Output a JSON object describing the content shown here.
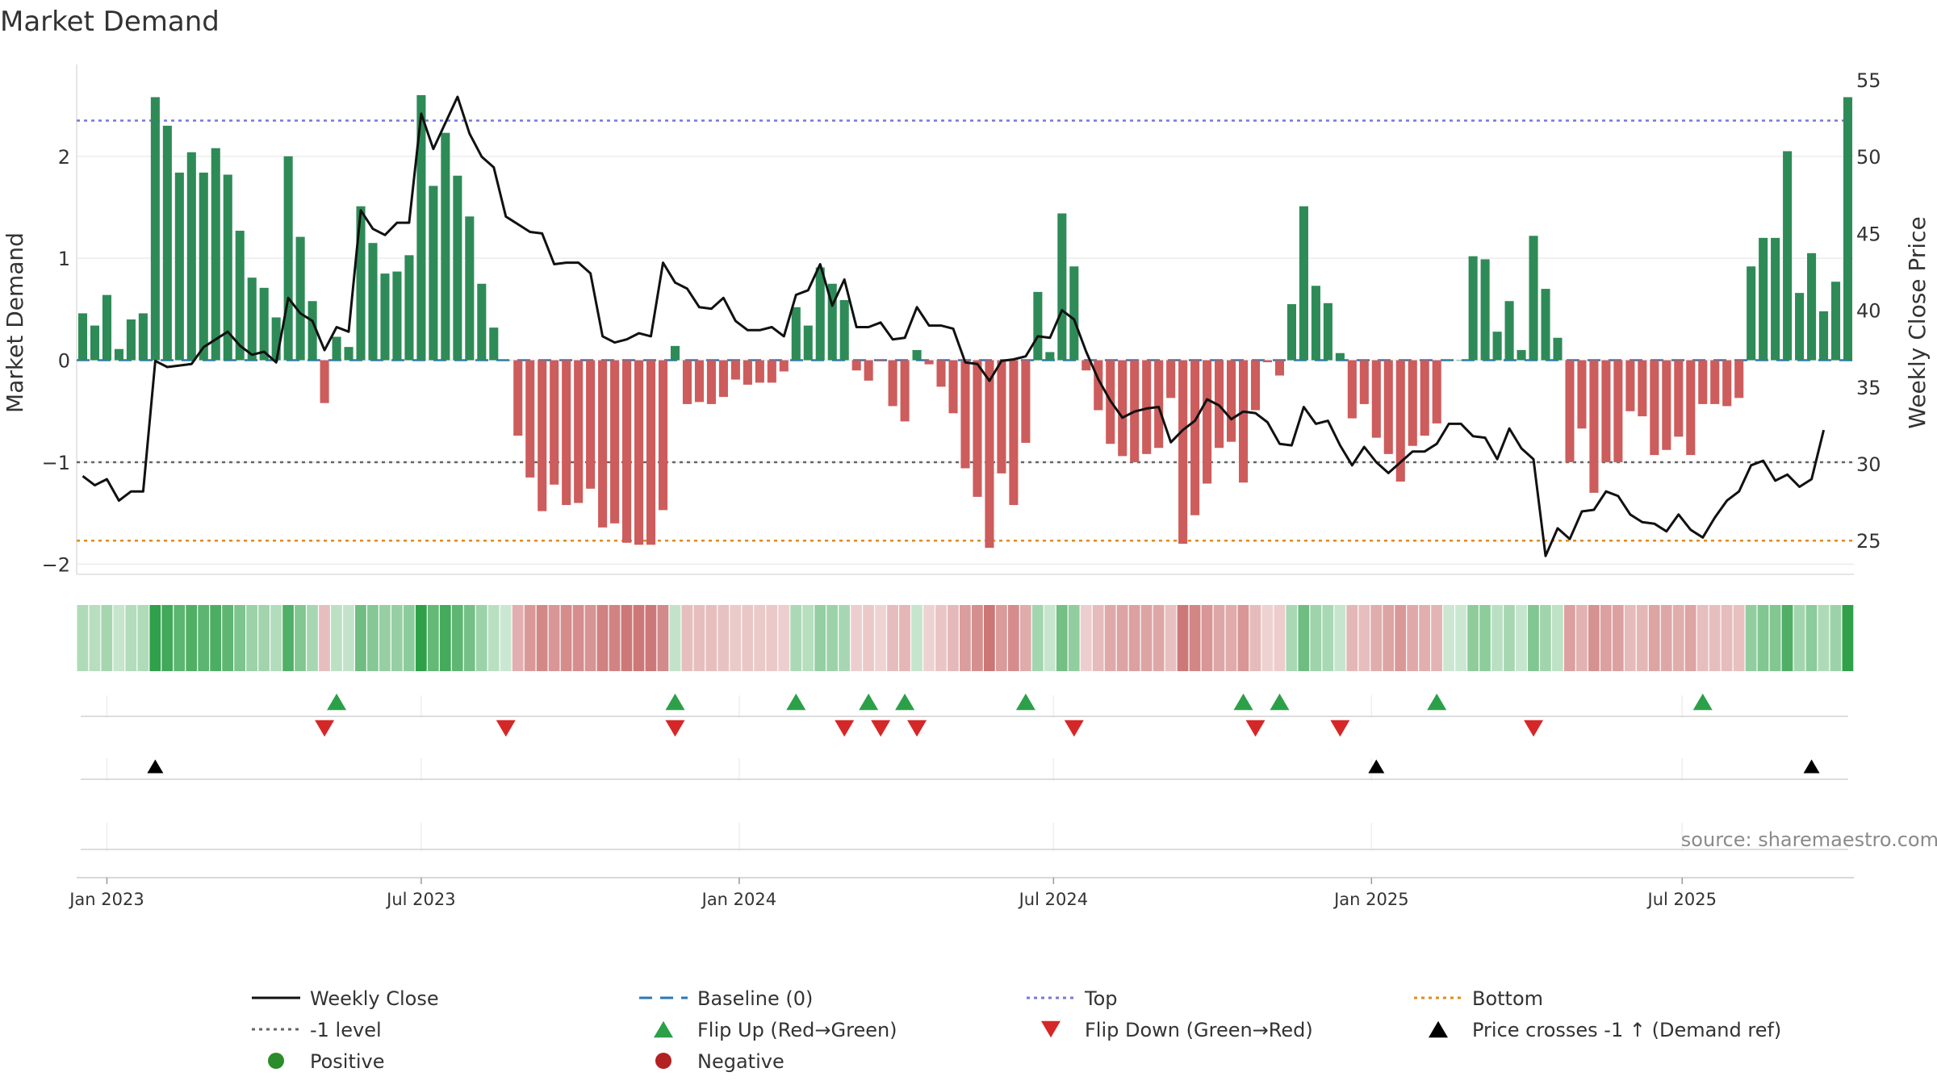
{
  "chart_data": {
    "type": "bar+line",
    "title": "Market Demand",
    "ylabel_left": "Market Demand",
    "ylabel_right": "Weekly Close Price",
    "ylim_left": [
      -2.1,
      2.9
    ],
    "ylim_right": [
      22.8,
      56
    ],
    "yticks_left": [
      -2,
      -1,
      0,
      1,
      2
    ],
    "yticks_left_labels": [
      "−2",
      "−1",
      "0",
      "1",
      "2"
    ],
    "yticks_right": [
      25,
      30,
      35,
      40,
      45,
      50,
      55
    ],
    "x_tick_labels": [
      "Jan 2023",
      "Jul 2023",
      "Jan 2024",
      "Jul 2024",
      "Jan 2025",
      "Jul 2025"
    ],
    "x_tick_index": [
      2,
      28,
      54.3,
      80.3,
      106.6,
      132.3
    ],
    "reference_lines": {
      "baseline": 0,
      "top": 2.35,
      "minus_one": -1,
      "bottom": -1.77
    },
    "demand": [
      0.46,
      0.34,
      0.64,
      0.11,
      0.4,
      0.46,
      2.58,
      2.3,
      1.84,
      2.04,
      1.84,
      2.08,
      1.82,
      1.27,
      0.81,
      0.71,
      0.42,
      2.0,
      1.21,
      0.58,
      -0.42,
      0.23,
      0.13,
      1.51,
      1.15,
      0.85,
      0.87,
      1.03,
      2.6,
      1.71,
      2.23,
      1.81,
      1.41,
      0.75,
      0.32,
      0.0,
      -0.74,
      -1.15,
      -1.48,
      -1.22,
      -1.42,
      -1.4,
      -1.26,
      -1.64,
      -1.6,
      -1.79,
      -1.81,
      -1.81,
      -1.47,
      0.14,
      -0.43,
      -0.41,
      -0.43,
      -0.36,
      -0.19,
      -0.24,
      -0.22,
      -0.22,
      -0.11,
      0.52,
      0.34,
      0.91,
      0.75,
      0.59,
      -0.1,
      -0.2,
      -0.01,
      -0.45,
      -0.6,
      0.1,
      -0.04,
      -0.26,
      -0.52,
      -1.06,
      -1.34,
      -1.84,
      -1.11,
      -1.42,
      -0.81,
      0.67,
      0.08,
      1.44,
      0.92,
      -0.1,
      -0.49,
      -0.82,
      -0.94,
      -1.0,
      -0.92,
      -0.86,
      -0.37,
      -1.8,
      -1.52,
      -1.21,
      -0.86,
      -0.8,
      -1.2,
      -0.49,
      -0.02,
      -0.15,
      0.55,
      1.51,
      0.73,
      0.56,
      0.07,
      -0.57,
      -0.43,
      -0.76,
      -0.92,
      -1.19,
      -0.84,
      -0.74,
      -0.62,
      0.0,
      0.0,
      1.02,
      0.99,
      0.28,
      0.58,
      0.1,
      1.22,
      0.7,
      0.22,
      -1.0,
      -0.67,
      -1.3,
      -1.0,
      -1.0,
      -0.5,
      -0.55,
      -0.93,
      -0.88,
      -0.75,
      -0.93,
      -0.43,
      -0.43,
      -0.45,
      -0.37,
      0.92,
      1.2,
      1.2,
      2.05,
      0.66,
      1.05,
      0.48,
      0.77,
      2.58
    ],
    "weekly_close": [
      29.2,
      28.6,
      29.0,
      27.6,
      28.2,
      28.2,
      36.7,
      36.3,
      36.4,
      36.5,
      37.6,
      38.1,
      38.6,
      37.7,
      37.1,
      37.3,
      36.6,
      40.8,
      39.8,
      39.3,
      37.4,
      38.9,
      38.6,
      46.5,
      45.3,
      44.9,
      45.7,
      45.7,
      52.8,
      50.5,
      52.2,
      53.9,
      51.5,
      50.0,
      49.3,
      46.1,
      45.6,
      45.1,
      45.0,
      43.0,
      43.1,
      43.1,
      42.4,
      38.3,
      37.9,
      38.1,
      38.5,
      38.3,
      43.1,
      41.8,
      41.4,
      40.2,
      40.1,
      40.8,
      39.3,
      38.7,
      38.7,
      38.9,
      38.3,
      41.0,
      41.3,
      43.0,
      40.3,
      42.0,
      38.9,
      38.9,
      39.2,
      38.1,
      38.2,
      40.2,
      39.0,
      39.0,
      38.8,
      36.6,
      36.5,
      35.4,
      36.7,
      36.8,
      37.0,
      38.3,
      38.2,
      40.0,
      39.4,
      37.3,
      35.5,
      34.1,
      33.0,
      33.4,
      33.6,
      33.7,
      31.4,
      32.2,
      32.8,
      34.2,
      33.8,
      32.9,
      33.4,
      33.3,
      32.7,
      31.3,
      31.2,
      33.7,
      32.6,
      32.8,
      31.2,
      29.9,
      31.1,
      30.1,
      29.4,
      30.1,
      30.8,
      30.8,
      31.3,
      32.6,
      32.6,
      31.8,
      31.7,
      30.3,
      32.3,
      31.0,
      30.3,
      24.0,
      25.8,
      25.1,
      26.9,
      27.0,
      28.2,
      27.9,
      26.7,
      26.2,
      26.1,
      25.6,
      26.7,
      25.7,
      25.2,
      26.5,
      27.6,
      28.2,
      29.9,
      30.2,
      28.9,
      29.3,
      28.5,
      29.0,
      32.2
    ],
    "flip_up_index": [
      21,
      49,
      59,
      65,
      68,
      78,
      96,
      99,
      112,
      134
    ],
    "flip_down_index": [
      20,
      35,
      49,
      63,
      66,
      69,
      82,
      97,
      104,
      120
    ],
    "price_cross_index": [
      6,
      107,
      143
    ],
    "source_text": "source: sharemaestro.com",
    "legend": [
      {
        "label": "Weekly Close",
        "kind": "solid-line",
        "color": "#111111"
      },
      {
        "label": "Baseline (0)",
        "kind": "dash-line",
        "color": "#2a78b5"
      },
      {
        "label": "Top",
        "kind": "dot-line",
        "color": "#7777dd"
      },
      {
        "label": "Bottom",
        "kind": "dot-line",
        "color": "#e08b1a"
      },
      {
        "label": "-1 level",
        "kind": "dot-line",
        "color": "#666666"
      },
      {
        "label": "Flip Up (Red→Green)",
        "kind": "up-triangle",
        "color": "#2ca048"
      },
      {
        "label": "Flip Down (Green→Red)",
        "kind": "down-triangle",
        "color": "#d62728"
      },
      {
        "label": "Price crosses -1 ↑ (Demand ref)",
        "kind": "up-triangle",
        "color": "#000000"
      },
      {
        "label": "Positive",
        "kind": "dot",
        "color": "#2a8c2a"
      },
      {
        "label": "Negative",
        "kind": "dot",
        "color": "#b22222"
      }
    ],
    "colors": {
      "positive_bar": "#2e8b57",
      "negative_bar": "#cd5c5c",
      "flip_up": "#2ca048",
      "flip_down": "#d62728",
      "cross": "#000000"
    }
  }
}
